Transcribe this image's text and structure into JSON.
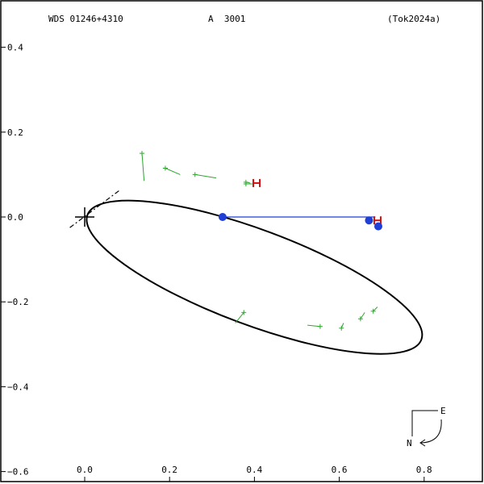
{
  "header": {
    "wds_id": "WDS 01246+4310",
    "discoverer": "A  3001",
    "orbit_ref": "(Tok2024a)"
  },
  "compass": {
    "east_label": "E",
    "north_label": "N"
  },
  "chart_data": {
    "type": "scatter",
    "xlim": [
      -0.2,
      0.9
    ],
    "ylim": [
      -0.6,
      0.5
    ],
    "xticks": [
      0.0,
      0.2,
      0.4,
      0.6,
      0.8
    ],
    "yticks": [
      0.4,
      0.2,
      0.0,
      -0.2,
      -0.4,
      -0.6
    ],
    "xtick_labels": [
      "0.0",
      "0.2",
      "0.4",
      "0.6",
      "0.8"
    ],
    "ytick_labels": [
      "0.4",
      "0.2",
      "0.0",
      "−0.2",
      "−0.4",
      "−0.6"
    ],
    "primary": [
      0,
      0
    ],
    "orbit_ellipse": {
      "center": [
        0.4,
        -0.142
      ],
      "a": 0.42,
      "b": 0.112,
      "angle_deg": -20.5
    },
    "node_line": [
      [
        -0.035,
        -0.025
      ],
      [
        0.085,
        0.065
      ]
    ],
    "measures": [
      {
        "obs": [
          0.135,
          0.15
        ],
        "pred": [
          0.14,
          0.085
        ]
      },
      {
        "obs": [
          0.19,
          0.115
        ],
        "pred": [
          0.225,
          0.1
        ]
      },
      {
        "obs": [
          0.26,
          0.1
        ],
        "pred": [
          0.31,
          0.092
        ]
      },
      {
        "obs": [
          0.38,
          0.082
        ],
        "pred": [
          0.39,
          0.08
        ]
      },
      {
        "obs": [
          0.38,
          0.078
        ],
        "pred": [
          0.395,
          0.078
        ]
      },
      {
        "obs": [
          0.375,
          -0.225
        ],
        "pred": [
          0.355,
          -0.25
        ]
      },
      {
        "obs": [
          0.555,
          -0.258
        ],
        "pred": [
          0.525,
          -0.255
        ]
      },
      {
        "obs": [
          0.605,
          -0.262
        ],
        "pred": [
          0.61,
          -0.25
        ]
      },
      {
        "obs": [
          0.65,
          -0.24
        ],
        "pred": [
          0.66,
          -0.225
        ]
      },
      {
        "obs": [
          0.68,
          -0.222
        ],
        "pred": [
          0.69,
          -0.212
        ]
      }
    ],
    "red_markers": [
      [
        0.405,
        0.08
      ],
      [
        0.69,
        -0.008
      ]
    ],
    "blue_points": [
      [
        0.325,
        0.0
      ],
      [
        0.67,
        -0.008
      ],
      [
        0.692,
        -0.022
      ]
    ],
    "blue_line": [
      [
        0.325,
        0.0
      ],
      [
        0.685,
        0.0
      ]
    ]
  }
}
